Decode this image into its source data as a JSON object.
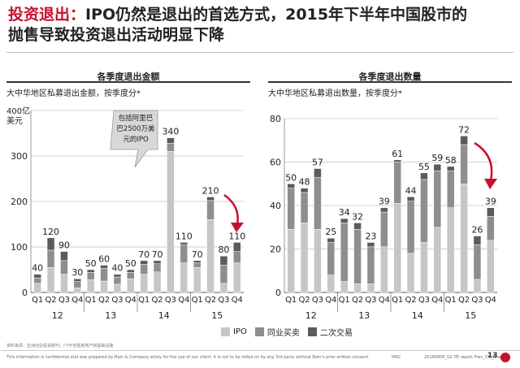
{
  "title": {
    "highlight": "投资退出：",
    "line1": "IPO仍然是退出的首选方式，2015年下半年中国股市的",
    "line2": "抛售导致投资退出活动明显下降"
  },
  "left_panel": {
    "heading": "各季度退出金额",
    "subtitle": "大中华地区私募退出金额，按季度分*",
    "unit_line1": "400亿",
    "unit_line2": "美元",
    "callout": [
      "包括阿里巴",
      "巴2500万美",
      "元的IPO"
    ]
  },
  "right_panel": {
    "heading": "各季度退出数量",
    "subtitle": "大中华地区私募退出数量，按季度分*"
  },
  "legend": [
    "IPO",
    "同业买卖",
    "二次交易"
  ],
  "colors": {
    "ipo": "#c6c6c6",
    "trade": "#8e8e8e",
    "secondary": "#5b5b5b",
    "accent": "#c8102e"
  },
  "source": "资料来源：亚洲创业投资期刊；(*)不包括房地产和基础设施",
  "footer": {
    "disclaimer": "This information is confidential and was prepared by Bain & Company solely for the use of our client; it is not to be relied on by any 3rd party without Bain's prior written consent",
    "code": "HKG",
    "file": "20160406_GC PE report Pres_CN_Final",
    "page": "13"
  },
  "chart_data": [
    {
      "type": "bar",
      "stacked": true,
      "ylim": [
        0,
        400
      ],
      "yticks": [
        0,
        100,
        200,
        300,
        400
      ],
      "yticklabels": [
        "0",
        "100",
        "200",
        "300",
        ""
      ],
      "categories": [
        "Q1",
        "Q2",
        "Q3",
        "Q4",
        "Q1",
        "Q2",
        "Q3",
        "Q4",
        "Q1",
        "Q2",
        "Q3",
        "Q4",
        "Q1",
        "Q2",
        "Q3",
        "Q4"
      ],
      "years": [
        "12",
        "13",
        "14",
        "15"
      ],
      "totals": [
        40,
        120,
        90,
        30,
        50,
        60,
        40,
        50,
        70,
        70,
        340,
        110,
        70,
        210,
        80,
        110
      ],
      "series": [
        {
          "name": "IPO",
          "values": [
            20,
            55,
            40,
            10,
            28,
            25,
            18,
            30,
            40,
            45,
            310,
            65,
            55,
            160,
            20,
            65
          ]
        },
        {
          "name": "同业买卖",
          "values": [
            12,
            38,
            30,
            14,
            16,
            28,
            16,
            14,
            22,
            18,
            18,
            40,
            10,
            42,
            40,
            25
          ]
        },
        {
          "name": "二次交易",
          "values": [
            8,
            27,
            20,
            6,
            6,
            7,
            6,
            6,
            8,
            7,
            12,
            5,
            5,
            8,
            20,
            20
          ]
        }
      ],
      "grid": true
    },
    {
      "type": "bar",
      "stacked": true,
      "ylim": [
        0,
        80
      ],
      "yticks": [
        0,
        20,
        40,
        60,
        80
      ],
      "yticklabels": [
        "0",
        "20",
        "40",
        "60",
        "80"
      ],
      "categories": [
        "Q1",
        "Q2",
        "Q3",
        "Q4",
        "Q1",
        "Q2",
        "Q3",
        "Q4",
        "Q1",
        "Q2",
        "Q3",
        "Q4",
        "Q1",
        "Q2",
        "Q3",
        "Q4"
      ],
      "years": [
        "12",
        "13",
        "14",
        "15"
      ],
      "totals": [
        50,
        48,
        57,
        25,
        34,
        32,
        23,
        39,
        61,
        44,
        55,
        59,
        58,
        72,
        26,
        39
      ],
      "series": [
        {
          "name": "IPO",
          "values": [
            29,
            32,
            29,
            8,
            5,
            4,
            4,
            21,
            41,
            18,
            23,
            30,
            39,
            50,
            6,
            24
          ]
        },
        {
          "name": "同业买卖",
          "values": [
            19,
            14,
            24,
            15,
            27,
            25,
            17,
            16,
            19,
            24,
            29,
            26,
            17,
            18,
            16,
            11
          ]
        },
        {
          "name": "二次交易",
          "values": [
            2,
            2,
            4,
            2,
            2,
            3,
            2,
            2,
            1,
            2,
            3,
            3,
            2,
            4,
            4,
            4
          ]
        }
      ],
      "grid": true
    }
  ]
}
